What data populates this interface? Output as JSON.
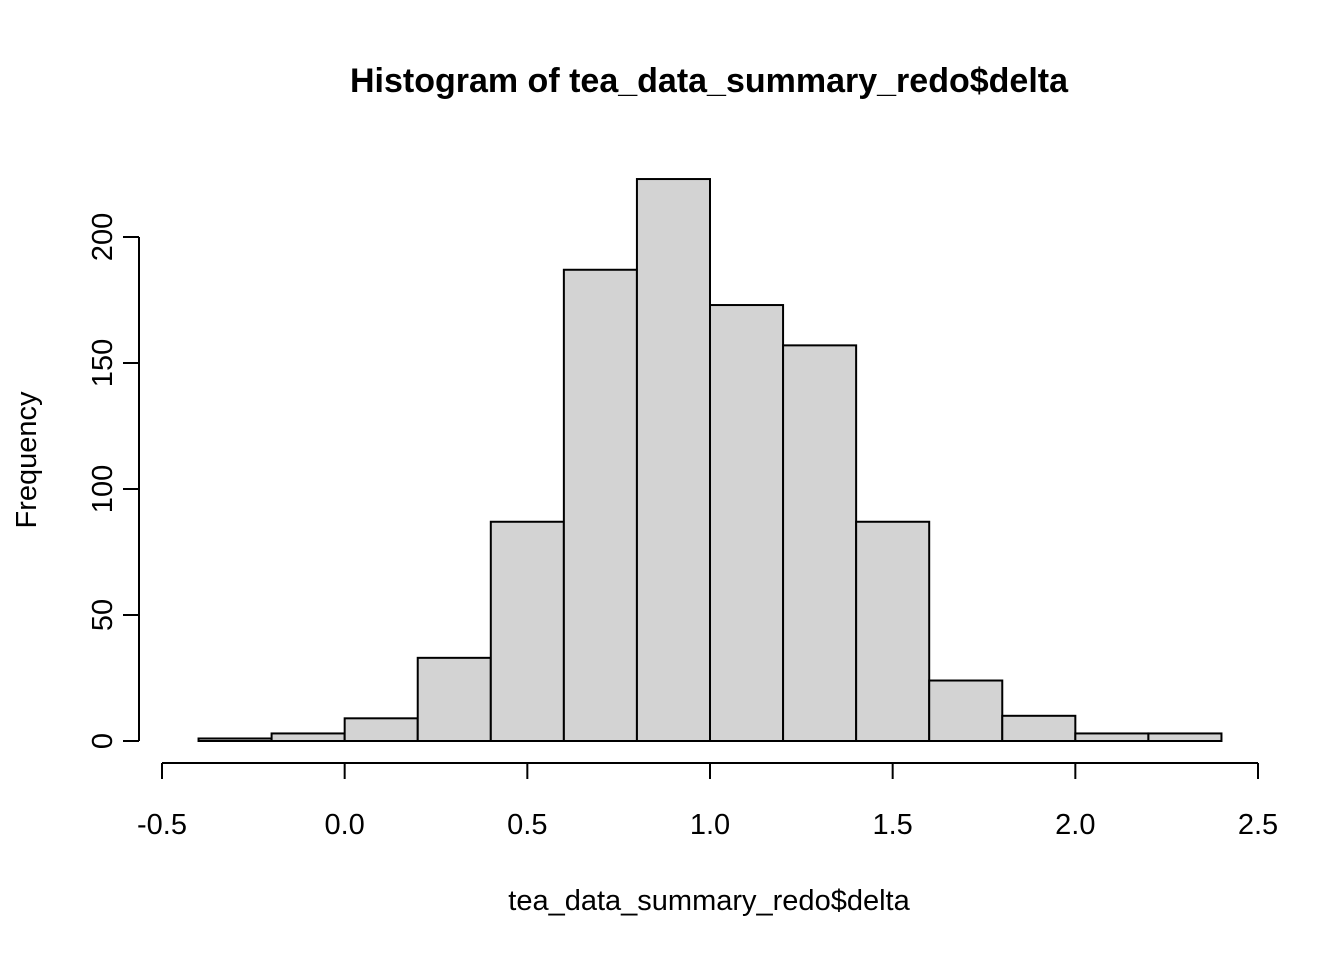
{
  "chart_data": {
    "type": "bar",
    "subtype": "histogram",
    "title": "Histogram of tea_data_summary_redo$delta",
    "xlabel": "tea_data_summary_redo$delta",
    "ylabel": "Frequency",
    "bins": [
      {
        "start": -0.4,
        "end": -0.2,
        "count": 1
      },
      {
        "start": -0.2,
        "end": 0.0,
        "count": 3
      },
      {
        "start": 0.0,
        "end": 0.2,
        "count": 9
      },
      {
        "start": 0.2,
        "end": 0.4,
        "count": 33
      },
      {
        "start": 0.4,
        "end": 0.6,
        "count": 87
      },
      {
        "start": 0.6,
        "end": 0.8,
        "count": 187
      },
      {
        "start": 0.8,
        "end": 1.0,
        "count": 223
      },
      {
        "start": 1.0,
        "end": 1.2,
        "count": 173
      },
      {
        "start": 1.2,
        "end": 1.4,
        "count": 157
      },
      {
        "start": 1.4,
        "end": 1.6,
        "count": 87
      },
      {
        "start": 1.6,
        "end": 1.8,
        "count": 24
      },
      {
        "start": 1.8,
        "end": 2.0,
        "count": 10
      },
      {
        "start": 2.0,
        "end": 2.2,
        "count": 3
      },
      {
        "start": 2.2,
        "end": 2.4,
        "count": 3
      }
    ],
    "xlim": [
      -0.5,
      2.5
    ],
    "ylim": [
      0,
      200
    ],
    "x_ticks": [
      -0.5,
      0.0,
      0.5,
      1.0,
      1.5,
      2.0,
      2.5
    ],
    "x_tick_labels": [
      "-0.5",
      "0.0",
      "0.5",
      "1.0",
      "1.5",
      "2.0",
      "2.5"
    ],
    "y_ticks": [
      0,
      50,
      100,
      150,
      200
    ],
    "y_tick_labels": [
      "0",
      "50",
      "100",
      "150",
      "200"
    ],
    "bar_fill": "#d3d3d3",
    "bar_stroke": "#000000",
    "grid": false,
    "legend": "none"
  }
}
